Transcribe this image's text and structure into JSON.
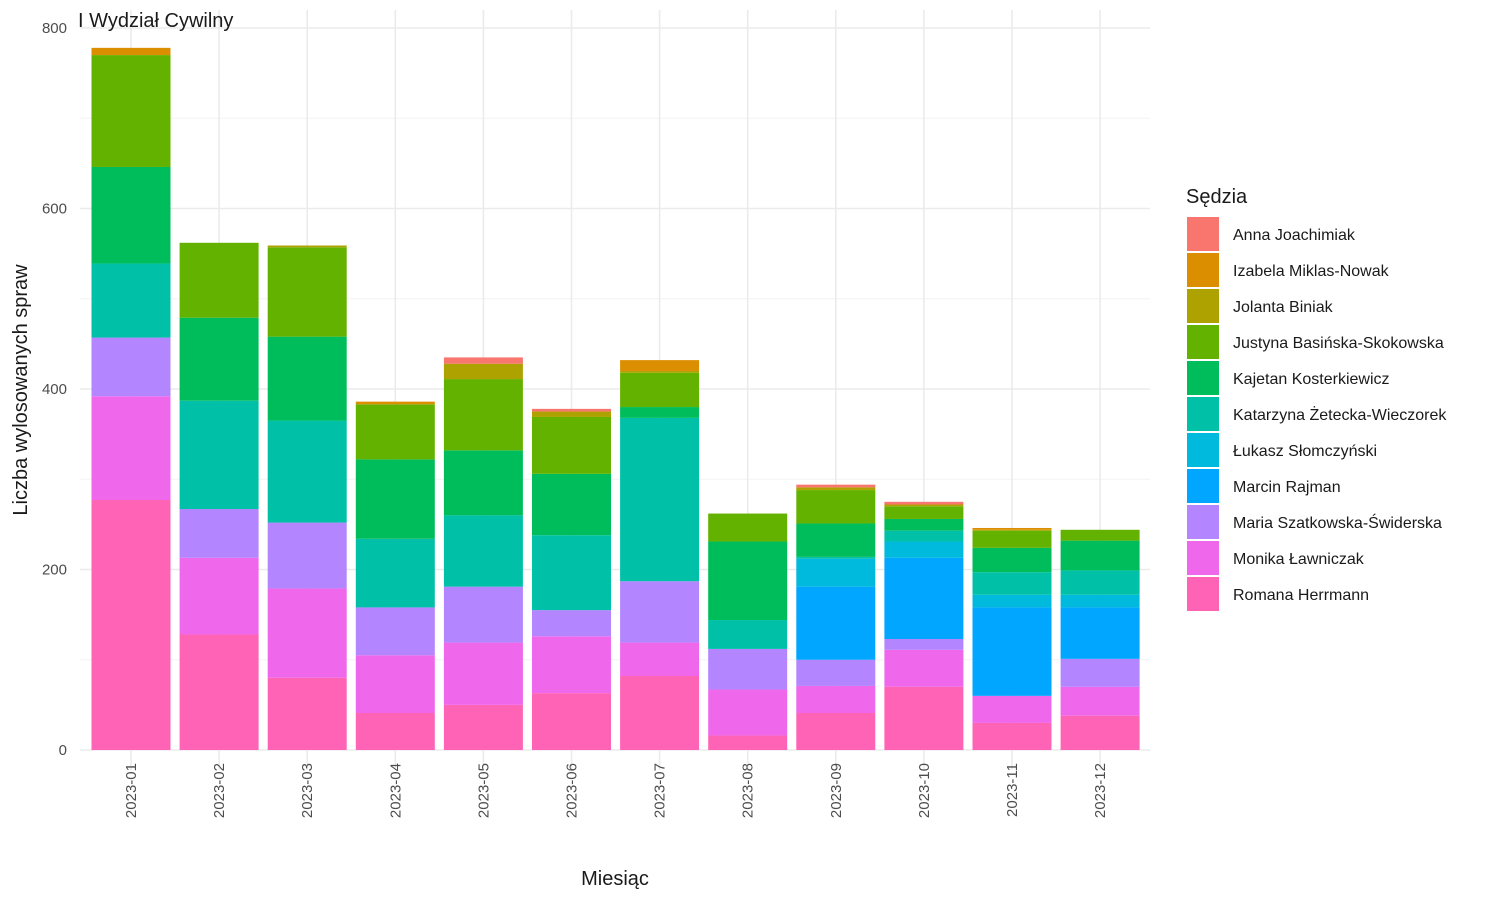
{
  "chart_data": {
    "type": "bar",
    "stacked": true,
    "title": "I Wydział Cywilny",
    "xlabel": "Miesiąc",
    "ylabel": "Liczba wylosowanych spraw",
    "ylim": [
      0,
      800
    ],
    "yticks": [
      0,
      200,
      400,
      600,
      800
    ],
    "grid": true,
    "legend_title": "Sędzia",
    "legend_position": "right",
    "categories": [
      "2023-01",
      "2023-02",
      "2023-03",
      "2023-04",
      "2023-05",
      "2023-06",
      "2023-07",
      "2023-08",
      "2023-09",
      "2023-10",
      "2023-11",
      "2023-12"
    ],
    "series": [
      {
        "name": "Anna Joachimiak",
        "color": "#F8766D",
        "values": [
          0,
          0,
          0,
          0,
          7,
          3,
          0,
          0,
          3,
          3,
          0,
          0
        ]
      },
      {
        "name": "Izabela Miklas-Nowak",
        "color": "#DB8E00",
        "values": [
          8,
          0,
          0,
          3,
          0,
          0,
          12,
          0,
          0,
          0,
          2,
          0
        ]
      },
      {
        "name": "Jolanta Biniak",
        "color": "#AEA200",
        "values": [
          0,
          0,
          2,
          0,
          17,
          6,
          2,
          0,
          3,
          2,
          1,
          0
        ]
      },
      {
        "name": "Justyna Basińska-Skokowska",
        "color": "#64B200",
        "values": [
          124,
          83,
          99,
          61,
          79,
          63,
          38,
          31,
          37,
          14,
          19,
          12
        ]
      },
      {
        "name": "Kajetan Kosterkiewicz",
        "color": "#00BD5C",
        "values": [
          107,
          92,
          93,
          88,
          72,
          68,
          12,
          87,
          37,
          13,
          27,
          33
        ]
      },
      {
        "name": "Katarzyna Żetecka-Wieczorek",
        "color": "#00C1A7",
        "values": [
          82,
          120,
          113,
          76,
          79,
          83,
          181,
          32,
          2,
          12,
          25,
          27
        ]
      },
      {
        "name": "Łukasz Słomczyński",
        "color": "#00BADE",
        "values": [
          0,
          0,
          0,
          0,
          0,
          0,
          0,
          0,
          31,
          18,
          14,
          14
        ]
      },
      {
        "name": "Marcin Rajman",
        "color": "#00A6FF",
        "values": [
          0,
          0,
          0,
          0,
          0,
          0,
          0,
          0,
          81,
          90,
          98,
          57
        ]
      },
      {
        "name": "Maria Szatkowska-Świderska",
        "color": "#B385FF",
        "values": [
          65,
          54,
          73,
          53,
          62,
          29,
          68,
          45,
          29,
          12,
          0,
          31
        ]
      },
      {
        "name": "Monika Ławniczak",
        "color": "#EF67EB",
        "values": [
          115,
          85,
          99,
          64,
          69,
          63,
          37,
          51,
          30,
          41,
          30,
          32
        ]
      },
      {
        "name": "Romana Herrmann",
        "color": "#FF63B6",
        "values": [
          277,
          128,
          80,
          41,
          50,
          63,
          82,
          16,
          41,
          70,
          30,
          38
        ]
      }
    ]
  }
}
